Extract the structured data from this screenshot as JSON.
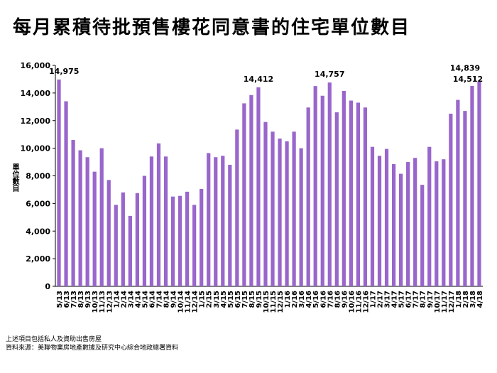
{
  "title": "每月累積待批預售樓花同意書的住宅單位數目",
  "footnotes": [
    "上述項目包括私人及資助出售房屋",
    "資料來源：美聯物業房地產數據及研究中心綜合地政總署資料"
  ],
  "chart_data": {
    "type": "bar",
    "ylabel": "單位數目",
    "ylim": [
      0,
      16000
    ],
    "yticks": [
      0,
      2000,
      4000,
      6000,
      8000,
      10000,
      12000,
      14000,
      16000
    ],
    "ytick_labels": [
      "0",
      "2,000",
      "4,000",
      "6,000",
      "8,000",
      "10,000",
      "12,000",
      "14,000",
      "16,000"
    ],
    "bar_color": "#9966cc",
    "categories": [
      "5/13",
      "6/13",
      "7/13",
      "8/13",
      "9/13",
      "10/13",
      "11/13",
      "12/13",
      "1/14",
      "2/14",
      "3/14",
      "4/14",
      "5/14",
      "6/14",
      "7/14",
      "8/14",
      "9/14",
      "10/14",
      "11/14",
      "12/14",
      "1/15",
      "2/15",
      "3/15",
      "4/15",
      "5/15",
      "6/15",
      "7/15",
      "8/15",
      "9/15",
      "10/15",
      "11/15",
      "12/15",
      "1/16",
      "2/16",
      "3/16",
      "4/16",
      "5/16",
      "6/16",
      "7/16",
      "8/16",
      "9/16",
      "10/16",
      "11/16",
      "12/16",
      "1/17",
      "2/17",
      "3/17",
      "4/17",
      "5/17",
      "6/17",
      "7/17",
      "8/17",
      "9/17",
      "10/17",
      "11/17",
      "12/17",
      "1/18",
      "2/18",
      "3/18",
      "4/18"
    ],
    "values": [
      14975,
      13400,
      10600,
      9850,
      9350,
      8300,
      10000,
      7700,
      5900,
      6800,
      5100,
      6750,
      8000,
      9400,
      10350,
      9400,
      6500,
      6550,
      6850,
      5900,
      7050,
      9650,
      9350,
      9450,
      8800,
      11350,
      13250,
      13850,
      14412,
      11900,
      11200,
      10700,
      10500,
      11200,
      10000,
      12950,
      14500,
      13800,
      14757,
      12600,
      14150,
      13450,
      13300,
      12950,
      10100,
      9450,
      9950,
      8850,
      8150,
      9000,
      9300,
      7350,
      10100,
      9050,
      9200,
      12500,
      13500,
      12700,
      14512,
      14839
    ],
    "data_labels": [
      {
        "index": 0,
        "text": "14,975"
      },
      {
        "index": 28,
        "text": "14,412"
      },
      {
        "index": 38,
        "text": "14,757"
      },
      {
        "index": 58,
        "text": "14,512"
      },
      {
        "index": 59,
        "text": "14,839"
      }
    ]
  }
}
